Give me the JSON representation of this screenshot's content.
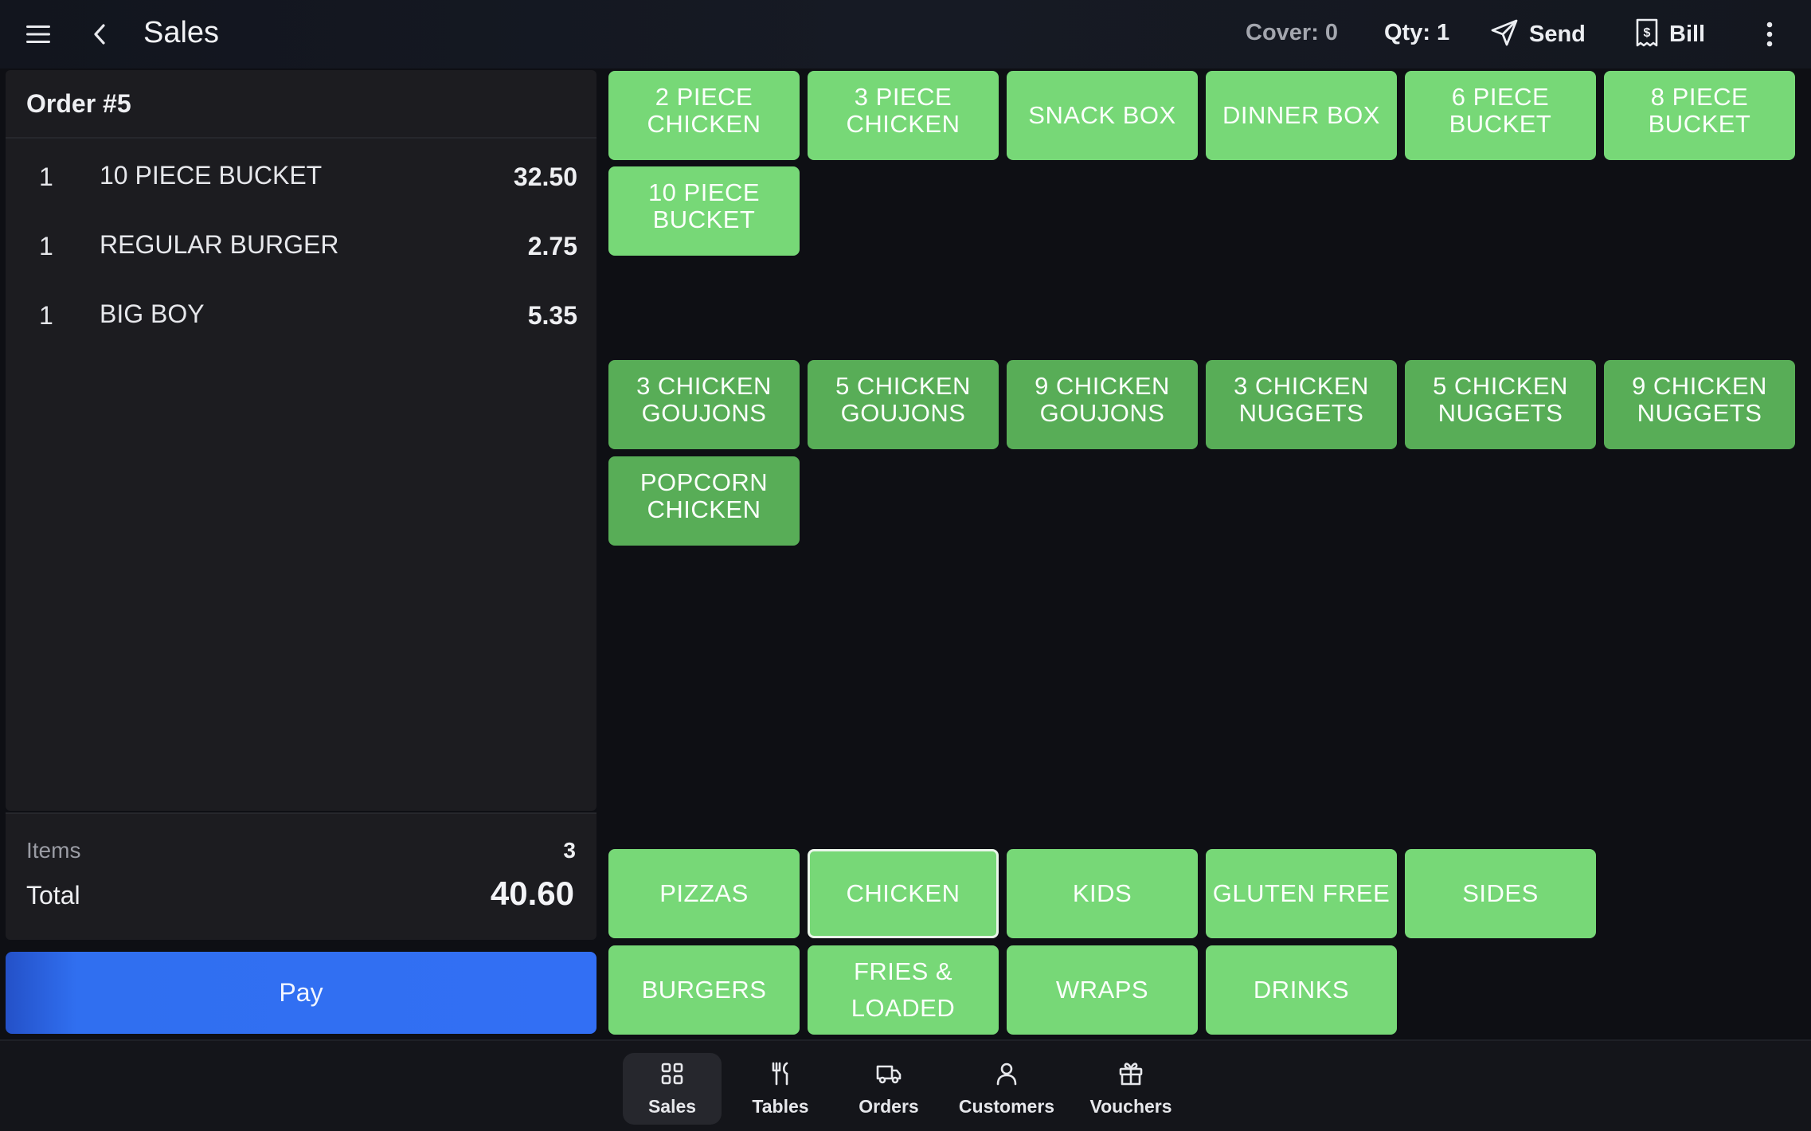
{
  "header": {
    "title": "Sales",
    "cover": "Cover: 0",
    "qty": "Qty: 1",
    "send": "Send",
    "bill": "Bill",
    "icons": [
      "hamburger-menu-icon",
      "chevron-left-icon",
      "send-icon",
      "bill-icon",
      "more-vertical-icon"
    ]
  },
  "order": {
    "title": "Order #5",
    "lines": [
      {
        "qty": "1",
        "name": "10 PIECE BUCKET",
        "price": "32.50"
      },
      {
        "qty": "1",
        "name": "REGULAR BURGER",
        "price": "2.75"
      },
      {
        "qty": "1",
        "name": "BIG BOY",
        "price": "5.35"
      }
    ],
    "items_label": "Items",
    "items_count": "3",
    "total_label": "Total",
    "total_value": "40.60",
    "pay_label": "Pay"
  },
  "products_group1": [
    "2 PIECE CHICKEN",
    "3 PIECE CHICKEN",
    "SNACK BOX",
    "DINNER BOX",
    "6 PIECE BUCKET",
    "8 PIECE BUCKET",
    "10 PIECE BUCKET"
  ],
  "products_group2": [
    "3 CHICKEN GOUJONS",
    "5 CHICKEN GOUJONS",
    "9 CHICKEN GOUJONS",
    "3 CHICKEN NUGGETS",
    "5 CHICKEN NUGGETS",
    "9 CHICKEN NUGGETS",
    "POPCORN CHICKEN"
  ],
  "categories": {
    "selected": "CHICKEN",
    "items": [
      "PIZZAS",
      "CHICKEN",
      "KIDS",
      "GLUTEN FREE",
      "SIDES",
      "BURGERS",
      "FRIES & LOADED",
      "WRAPS",
      "DRINKS"
    ]
  },
  "nav": {
    "active": "Sales",
    "items": [
      {
        "label": "Sales",
        "icon": "grid-icon"
      },
      {
        "label": "Tables",
        "icon": "fork-knife-icon"
      },
      {
        "label": "Orders",
        "icon": "delivery-truck-icon"
      },
      {
        "label": "Customers",
        "icon": "user-icon"
      },
      {
        "label": "Vouchers",
        "icon": "gift-icon"
      }
    ]
  },
  "colors": {
    "tile_light": "#77d877",
    "tile_dark": "#58ad57",
    "pay_blue": "#326ff4",
    "background": "#0e0f14",
    "panel": "#1c1c20"
  }
}
